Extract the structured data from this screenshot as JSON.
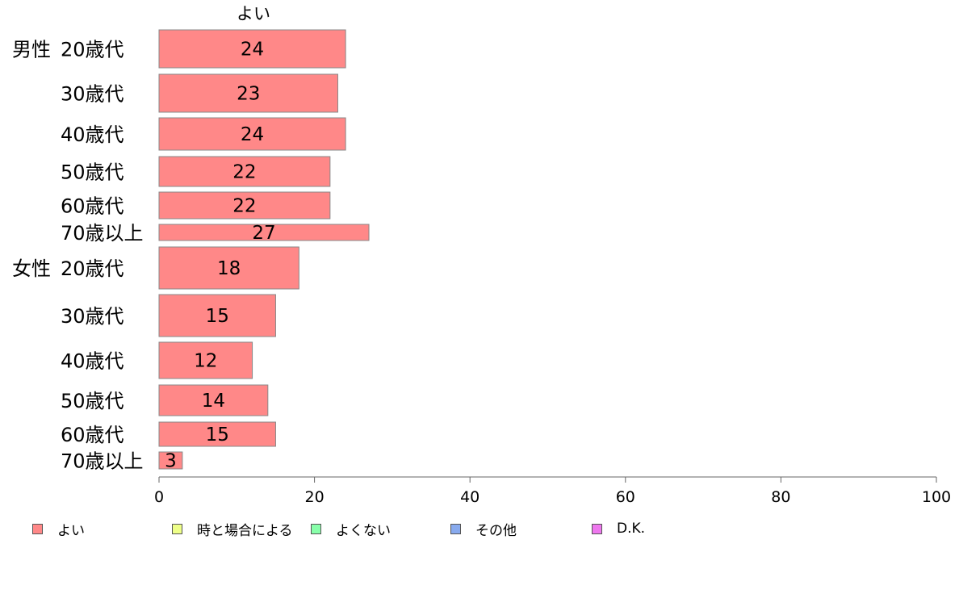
{
  "chart_data": {
    "type": "bar",
    "orientation": "horizontal",
    "stacked": true,
    "series_title": "よい",
    "groups": [
      {
        "label": "男性",
        "categories": [
          "20歳代",
          "30歳代",
          "40歳代",
          "50歳代",
          "60歳代",
          "70歳以上"
        ]
      },
      {
        "label": "女性",
        "categories": [
          "20歳代",
          "30歳代",
          "40歳代",
          "50歳代",
          "60歳代",
          "70歳以上"
        ]
      }
    ],
    "series": [
      {
        "name": "よい",
        "color": "#ff8888",
        "values": [
          24,
          23,
          24,
          22,
          22,
          27,
          18,
          15,
          12,
          14,
          15,
          3
        ]
      }
    ],
    "value_labels": [
      "24",
      "23",
      "24",
      "22",
      "22",
      "27",
      "18",
      "15",
      "12",
      "14",
      "15",
      "3"
    ],
    "xlim": [
      0,
      100
    ],
    "xticks": [
      "0",
      "20",
      "40",
      "60",
      "80",
      "100"
    ],
    "legend": {
      "position": "bottom",
      "items": [
        {
          "label": "よい",
          "color": "#ff8888"
        },
        {
          "label": "時と場合による",
          "color": "#eeff88"
        },
        {
          "label": "よくない",
          "color": "#88ffaa"
        },
        {
          "label": "その他",
          "color": "#88aaee"
        },
        {
          "label": "D.K.",
          "color": "#ee77ee"
        }
      ]
    }
  }
}
